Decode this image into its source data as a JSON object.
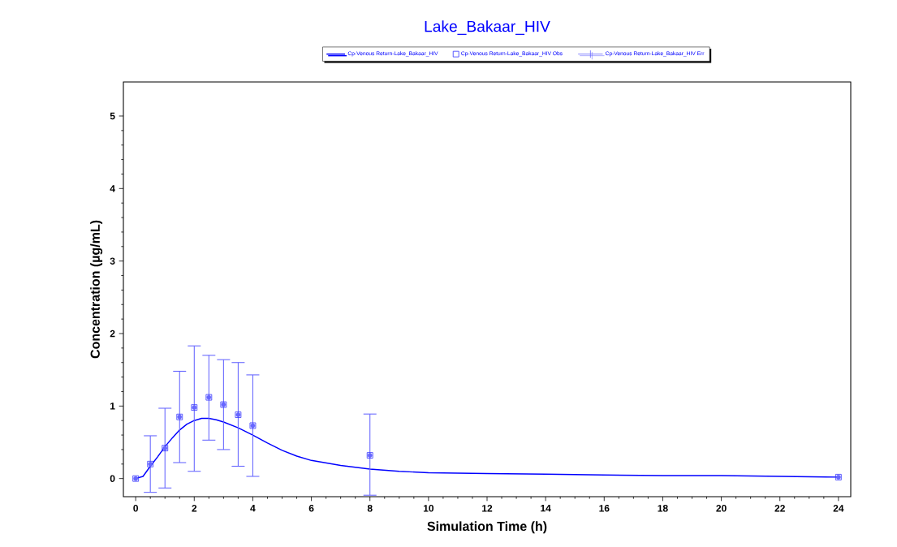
{
  "chart_data": {
    "type": "line",
    "title": "Lake_Bakaar_HIV",
    "xlabel": "Simulation Time (h)",
    "ylabel": "Concentration (µg/mL)",
    "xlim": [
      -0.42,
      24.42
    ],
    "ylim": [
      -0.25,
      5.47
    ],
    "xticks": [
      0,
      2,
      4,
      6,
      8,
      10,
      12,
      14,
      16,
      18,
      20,
      22,
      24
    ],
    "yticks": [
      0,
      1,
      2,
      3,
      4,
      5
    ],
    "legend": "top",
    "series": [
      {
        "name": "Cp-Venous Return-Lake_Bakaar_HIV",
        "color": "#0000ff",
        "marker": "none",
        "line_style": "solid",
        "x": [
          0,
          0.25,
          0.5,
          0.75,
          1,
          1.25,
          1.5,
          1.75,
          2,
          2.25,
          2.5,
          2.75,
          3,
          3.5,
          4,
          4.5,
          5,
          5.5,
          6,
          7,
          8,
          9,
          10,
          12,
          14,
          16,
          18,
          20,
          22,
          24
        ],
        "values": [
          0,
          0.03,
          0.17,
          0.3,
          0.44,
          0.56,
          0.67,
          0.75,
          0.8,
          0.83,
          0.83,
          0.81,
          0.78,
          0.7,
          0.6,
          0.49,
          0.39,
          0.31,
          0.25,
          0.18,
          0.13,
          0.1,
          0.08,
          0.07,
          0.06,
          0.05,
          0.04,
          0.04,
          0.03,
          0.02
        ]
      },
      {
        "name": "Cp-Venous Return-Lake_Bakaar_HIV Obs",
        "type": "scatter",
        "color": "#3333ff",
        "marker": "square",
        "x": [
          0,
          0.5,
          1,
          1.5,
          2,
          2.5,
          3,
          3.5,
          4,
          8,
          24
        ],
        "values": [
          0,
          0.2,
          0.42,
          0.85,
          0.98,
          1.12,
          1.02,
          0.88,
          0.73,
          0.32,
          0.02
        ]
      },
      {
        "name": "Cp-Venous Return-Lake_Bakaar_HIV Err",
        "type": "scatter",
        "color": "#6666ff",
        "marker": "none",
        "x": [
          0,
          0.5,
          1,
          1.5,
          2,
          2.5,
          3,
          3.5,
          4,
          8,
          24
        ],
        "values": [
          0,
          0.2,
          0.42,
          0.85,
          0.98,
          1.12,
          1.02,
          0.88,
          0.73,
          0.32,
          0.02
        ],
        "errors": [
          null,
          [
            -0.19,
            0.59
          ],
          [
            -0.13,
            0.97
          ],
          [
            0.22,
            1.48
          ],
          [
            0.1,
            1.83
          ],
          [
            0.53,
            1.7
          ],
          [
            0.4,
            1.64
          ],
          [
            0.17,
            1.6
          ],
          [
            0.03,
            1.43
          ],
          [
            -0.23,
            0.89
          ],
          null
        ]
      }
    ]
  }
}
